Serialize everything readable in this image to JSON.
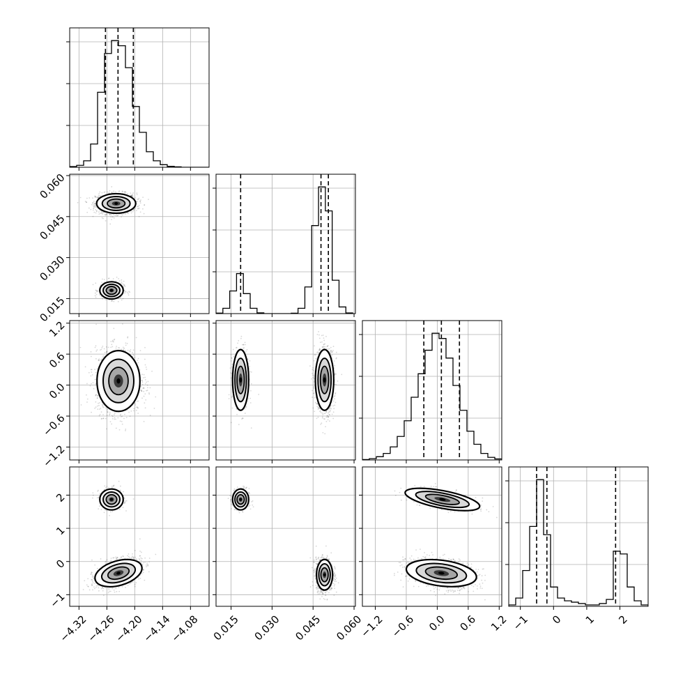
{
  "chart_data": {
    "type": "corner",
    "grid": true,
    "variables": [
      {
        "range": [
          -4.34,
          -4.04
        ],
        "ticks": [
          -4.32,
          -4.26,
          -4.2,
          -4.14,
          -4.08
        ],
        "tick_labels": [
          "−4.32",
          "−4.26",
          "−4.20",
          "−4.14",
          "−4.08"
        ],
        "quantiles": [
          -4.263,
          -4.236,
          -4.203
        ],
        "histogram": {
          "edges": [
            -4.34,
            -4.325,
            -4.31,
            -4.295,
            -4.28,
            -4.265,
            -4.25,
            -4.235,
            -4.22,
            -4.205,
            -4.19,
            -4.175,
            -4.16,
            -4.145,
            -4.13,
            -4.115,
            -4.1,
            -4.085,
            -4.07,
            -4.055,
            -4.04
          ],
          "counts": [
            0.5,
            1.5,
            5,
            18,
            58,
            88,
            98,
            94,
            77,
            47,
            27,
            12,
            5,
            2,
            0.7,
            0.3,
            0,
            0,
            0,
            0
          ]
        }
      },
      {
        "range": [
          0.0095,
          0.0605
        ],
        "ticks": [
          0.015,
          0.03,
          0.045,
          0.06
        ],
        "tick_labels": [
          "0.015",
          "0.030",
          "0.045",
          "0.060"
        ],
        "quantiles": [
          0.0185,
          0.0479,
          0.0506
        ],
        "histogram": {
          "edges": [
            0.0095,
            0.012,
            0.0145,
            0.017,
            0.0195,
            0.022,
            0.0245,
            0.027,
            0.0295,
            0.032,
            0.0345,
            0.037,
            0.0395,
            0.042,
            0.0445,
            0.047,
            0.0495,
            0.052,
            0.0545,
            0.057,
            0.0595
          ],
          "counts": [
            0.4,
            4,
            17,
            30,
            15,
            4,
            0.6,
            0,
            0,
            0,
            0,
            0.3,
            4,
            20,
            66,
            95,
            77,
            25,
            5,
            0.5
          ]
        }
      },
      {
        "range": [
          -1.45,
          1.25
        ],
        "ticks": [
          -1.2,
          -0.6,
          0.0,
          0.6,
          1.2
        ],
        "tick_labels": [
          "−1.2",
          "−0.6",
          "0.0",
          "0.6",
          "1.2"
        ],
        "quantiles": [
          -0.26,
          0.08,
          0.43
        ],
        "histogram": {
          "edges": [
            -1.45,
            -1.315,
            -1.18,
            -1.045,
            -0.91,
            -0.775,
            -0.64,
            -0.505,
            -0.37,
            -0.235,
            -0.1,
            0.035,
            0.17,
            0.305,
            0.44,
            0.575,
            0.71,
            0.845,
            0.98,
            1.115,
            1.25
          ],
          "counts": [
            0.3,
            1,
            2.5,
            5,
            10,
            18,
            30,
            48,
            66,
            84,
            97,
            93,
            78,
            57,
            38,
            22,
            12,
            5,
            2,
            0.8
          ]
        }
      },
      {
        "range": [
          -1.35,
          2.85
        ],
        "ticks": [
          -1,
          0,
          1,
          2
        ],
        "tick_labels": [
          "−1",
          "0",
          "1",
          "2"
        ],
        "quantiles": [
          -0.51,
          -0.2,
          1.87
        ],
        "histogram": {
          "edges": [
            -1.35,
            -1.14,
            -0.93,
            -0.72,
            -0.51,
            -0.3,
            -0.09,
            0.12,
            0.33,
            0.54,
            0.75,
            0.96,
            1.17,
            1.38,
            1.59,
            1.8,
            2.01,
            2.22,
            2.43,
            2.64,
            2.85
          ],
          "counts": [
            1,
            6,
            26,
            58,
            92,
            52,
            14,
            6,
            4,
            3,
            2,
            1,
            1,
            2,
            5,
            40,
            38,
            14,
            4,
            1
          ]
        }
      }
    ],
    "panels_2d": [
      {
        "row": 1,
        "col": 0,
        "modes": [
          {
            "x": -4.24,
            "y": 0.0498,
            "sx": 0.02,
            "sy": 0.0017,
            "w": 0.75,
            "rho": 0
          },
          {
            "x": -4.25,
            "y": 0.018,
            "sx": 0.012,
            "sy": 0.0015,
            "w": 0.25,
            "rho": 0
          }
        ]
      },
      {
        "row": 2,
        "col": 0,
        "modes": [
          {
            "x": -4.235,
            "y": 0.08,
            "sx": 0.022,
            "sy": 0.28,
            "w": 1.0,
            "rho": 0
          }
        ]
      },
      {
        "row": 2,
        "col": 1,
        "modes": [
          {
            "x": 0.0185,
            "y": 0.1,
            "sx": 0.0014,
            "sy": 0.28,
            "w": 0.25,
            "rho": 0
          },
          {
            "x": 0.0492,
            "y": 0.1,
            "sx": 0.0016,
            "sy": 0.28,
            "w": 0.75,
            "rho": 0
          }
        ]
      },
      {
        "row": 3,
        "col": 0,
        "modes": [
          {
            "x": -4.25,
            "y": 1.87,
            "sx": 0.012,
            "sy": 0.15,
            "w": 0.25,
            "rho": 0
          },
          {
            "x": -4.235,
            "y": -0.35,
            "sx": 0.022,
            "sy": 0.2,
            "w": 0.75,
            "rho": 0.45
          }
        ]
      },
      {
        "row": 3,
        "col": 1,
        "modes": [
          {
            "x": 0.0185,
            "y": 1.87,
            "sx": 0.0014,
            "sy": 0.15,
            "w": 0.25,
            "rho": 0
          },
          {
            "x": 0.0492,
            "y": -0.4,
            "sx": 0.0014,
            "sy": 0.22,
            "w": 0.75,
            "rho": 0
          }
        ]
      },
      {
        "row": 3,
        "col": 2,
        "modes": [
          {
            "x": 0.1,
            "y": 1.87,
            "sx": 0.3,
            "sy": 0.15,
            "w": 0.25,
            "rho": -0.6
          },
          {
            "x": 0.08,
            "y": -0.35,
            "sx": 0.3,
            "sy": 0.2,
            "w": 0.75,
            "rho": -0.3
          }
        ]
      }
    ]
  }
}
